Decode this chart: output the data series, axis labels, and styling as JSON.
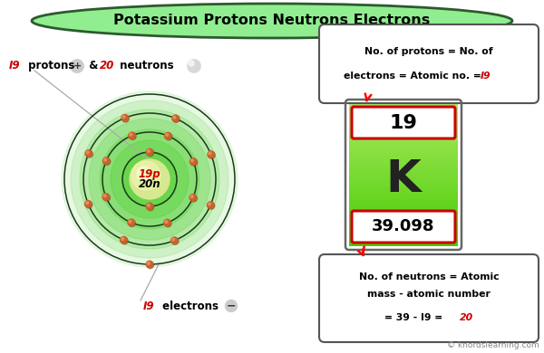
{
  "title": "Potassium Protons Neutrons Electrons",
  "title_bg": "#90EE90",
  "title_border": "#2d5a2d",
  "bg_color": "#ffffff",
  "nucleus_text_p": "19p",
  "nucleus_text_n": "20n",
  "orbit_color": "#1a3a1a",
  "electron_color": "#c8622a",
  "electron_color2": "#a04010",
  "proton_label_num": "I9",
  "proton_label_rest": " protons",
  "neutron_label_num": "20",
  "neutron_label_rest": " neutrons",
  "amp_label": " & ",
  "electron_label_num": "I9",
  "electron_label_rest": " electrons",
  "element_symbol": "K",
  "atomic_number": "19",
  "atomic_mass": "39.098",
  "element_border": "#cc0000",
  "element_tile_border": "#888888",
  "box1_line1": "No. of protons = No. of",
  "box1_line2": "electrons = Atomic no. = ",
  "box1_num": "I9",
  "box2_line1": "No. of neutrons = Atomic",
  "box2_line2": "mass - atomic number",
  "box2_line3": "= 39 - I9 = ",
  "box2_num": "20",
  "copyright": "© knordslearning.com",
  "label_color": "#cc0000",
  "orbit_radii": [
    0.3,
    0.52,
    0.73,
    0.94
  ],
  "electrons_per_orbit": [
    2,
    8,
    8,
    1
  ],
  "electron_angles": [
    [
      90,
      270
    ],
    [
      22,
      67,
      112,
      157,
      202,
      247,
      292,
      337
    ],
    [
      22,
      67,
      112,
      157,
      202,
      247,
      292,
      337
    ],
    [
      270
    ]
  ]
}
